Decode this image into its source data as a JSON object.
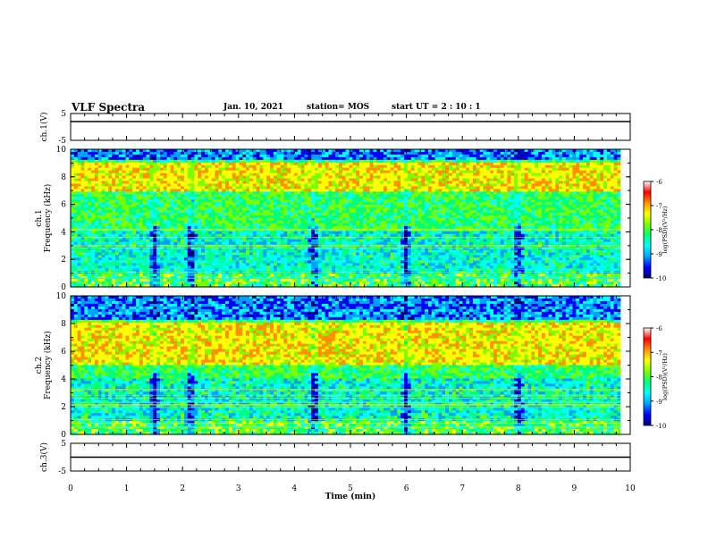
{
  "header": {
    "title": "VLF Spectra",
    "date": "Jan. 10, 2021",
    "station": "station= MOS",
    "start": "start  UT =   2 : 10 : 1"
  },
  "chart_data": [
    {
      "type": "line",
      "panel": "ch1-waveform",
      "ylabel": "ch.1(V)",
      "ylim": [
        -5,
        5
      ],
      "yticks": [
        "5",
        "-5"
      ],
      "x": [
        0,
        10
      ],
      "y": [
        2,
        2
      ],
      "xlim": [
        0,
        10
      ]
    },
    {
      "type": "heatmap",
      "panel": "ch1-spectrogram",
      "ylabel": "ch.1\nFrequency (kHz)",
      "ylim": [
        0,
        10
      ],
      "yticks": [
        "0",
        "2",
        "4",
        "6",
        "8",
        "10"
      ],
      "xlim": [
        0,
        9.83
      ],
      "colorbar": {
        "label": "log(PSD)(V²/Hz)",
        "range": [
          -10,
          -6
        ],
        "ticks": [
          "-6",
          "-7",
          "-8",
          "-9",
          "-10"
        ]
      },
      "dominant_band_khz": [
        7,
        9
      ],
      "gaps_min": [
        1.5,
        2.15,
        4.35,
        6.0,
        8.0
      ]
    },
    {
      "type": "heatmap",
      "panel": "ch2-spectrogram",
      "ylabel": "ch.2\nFrequency (kHz)",
      "ylim": [
        0,
        10
      ],
      "yticks": [
        "0",
        "2",
        "4",
        "6",
        "8",
        "10"
      ],
      "xlim": [
        0,
        9.83
      ],
      "colorbar": {
        "label": "log(PSD)(V²/Hz)",
        "range": [
          -10,
          -6
        ],
        "ticks": [
          "-6",
          "-7",
          "-8",
          "-9",
          "-10"
        ]
      },
      "dominant_band_khz": [
        5,
        8
      ],
      "gaps_min": [
        1.5,
        2.15,
        4.35,
        6.0,
        8.0
      ]
    },
    {
      "type": "line",
      "panel": "ch3-waveform",
      "ylabel": "ch.3(V)",
      "ylim": [
        -5,
        5
      ],
      "yticks": [
        "5",
        "-5"
      ],
      "x": [
        0,
        10
      ],
      "y": [
        0,
        0
      ],
      "xlim": [
        0,
        10
      ]
    }
  ],
  "xaxis": {
    "label": "Time  (min)",
    "range": [
      0,
      10
    ],
    "ticks": [
      "0",
      "1",
      "2",
      "3",
      "4",
      "5",
      "6",
      "7",
      "8",
      "9",
      "10"
    ]
  },
  "colors": {
    "cmap": [
      "#00007a",
      "#0000ff",
      "#00a0ff",
      "#00ffff",
      "#00ff7a",
      "#7aff00",
      "#ffff00",
      "#ff9000",
      "#ff0000",
      "#ffffff"
    ]
  }
}
